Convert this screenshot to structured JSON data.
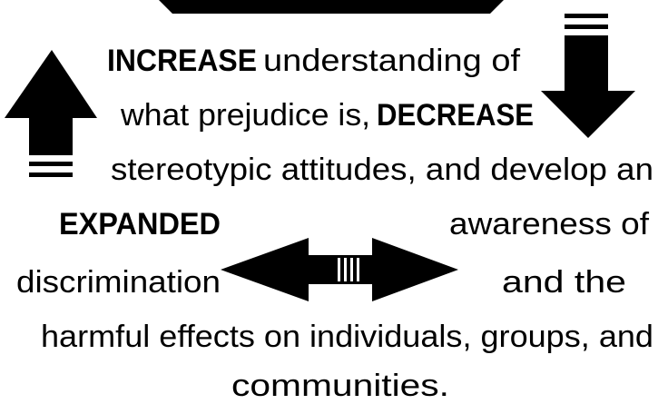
{
  "segments": [
    {
      "text": "INCREASE",
      "bold": true
    },
    {
      "text": "understanding of",
      "bold": false
    },
    {
      "text": "what prejudice is,",
      "bold": false
    },
    {
      "text": "DECREASE",
      "bold": true
    },
    {
      "text": "stereotypic attitudes, and develop an",
      "bold": false
    },
    {
      "text": "EXPANDED",
      "bold": true
    },
    {
      "text": "awareness of",
      "bold": false
    },
    {
      "text": "discrimination",
      "bold": false
    },
    {
      "text": "and the",
      "bold": false
    },
    {
      "text": "harmful effects on individuals, groups, and",
      "bold": false
    },
    {
      "text": "communities.",
      "bold": false
    }
  ]
}
